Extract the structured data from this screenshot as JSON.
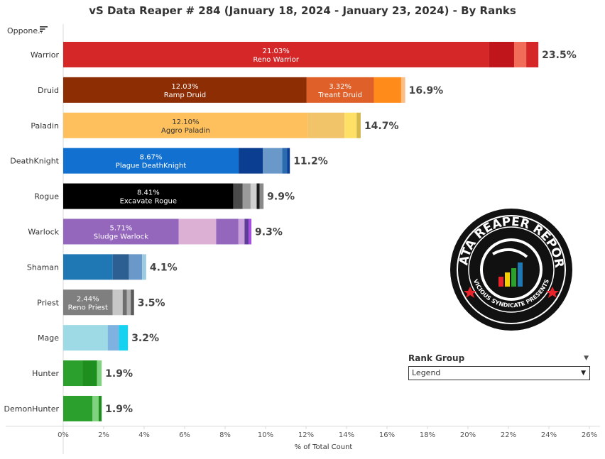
{
  "title": "vS Data Reaper #  284 (January 18, 2024 - January 23, 2024) - By Ranks",
  "filter_label": "Oppone..",
  "rank_group": {
    "title": "Rank Group",
    "selected": "Legend"
  },
  "watermark": {
    "text": "DATA REAPER REPORT",
    "subtext": "VICIOUS SYNDICATE PRESENTS"
  },
  "chart_data": {
    "type": "bar",
    "orientation": "horizontal",
    "stacked": true,
    "xlabel": "% of Total Count",
    "ylabel": "",
    "xlim": [
      0,
      26
    ],
    "xticks": [
      "0%",
      "2%",
      "4%",
      "6%",
      "8%",
      "10%",
      "12%",
      "14%",
      "16%",
      "18%",
      "20%",
      "22%",
      "24%",
      "26%"
    ],
    "grid": false,
    "rows": [
      {
        "class": "Warrior",
        "total_label": "23.5%",
        "segments": [
          {
            "value": 21.03,
            "color": "#d62728",
            "label_pct": "21.03%",
            "label_name": "Reno Warrior"
          },
          {
            "value": 1.25,
            "color": "#c0161b"
          },
          {
            "value": 0.6,
            "color": "#f26c5a"
          },
          {
            "value": 0.6,
            "color": "#d62728"
          }
        ]
      },
      {
        "class": "Druid",
        "total_label": "16.9%",
        "segments": [
          {
            "value": 12.03,
            "color": "#8c2d04",
            "label_pct": "12.03%",
            "label_name": "Ramp Druid"
          },
          {
            "value": 3.32,
            "color": "#e0602a",
            "label_pct": "3.32%",
            "label_name": "Treant Druid"
          },
          {
            "value": 1.35,
            "color": "#ff8c1a"
          },
          {
            "value": 0.2,
            "color": "#fdbe85"
          }
        ]
      },
      {
        "class": "Paladin",
        "total_label": "14.7%",
        "segments": [
          {
            "value": 12.1,
            "color": "#fec05c",
            "label_pct": "12.10%",
            "label_name": "Aggro Paladin"
          },
          {
            "value": 1.8,
            "color": "#f2c46a"
          },
          {
            "value": 0.6,
            "color": "#ffe066"
          },
          {
            "value": 0.2,
            "color": "#d4b94a"
          }
        ]
      },
      {
        "class": "DeathKnight",
        "total_label": "11.2%",
        "segments": [
          {
            "value": 8.67,
            "color": "#1170d0",
            "label_pct": "8.67%",
            "label_name": "Plague DeathKnight"
          },
          {
            "value": 1.2,
            "color": "#0b3d91"
          },
          {
            "value": 0.95,
            "color": "#6a99c9"
          },
          {
            "value": 0.25,
            "color": "#2b6cb0"
          },
          {
            "value": 0.13,
            "color": "#0b3d91"
          }
        ]
      },
      {
        "class": "Rogue",
        "total_label": "9.9%",
        "segments": [
          {
            "value": 8.41,
            "color": "#000000",
            "label_pct": "8.41%",
            "label_name": "Excavate Rogue"
          },
          {
            "value": 0.45,
            "color": "#4a4a4a"
          },
          {
            "value": 0.4,
            "color": "#9a9a9a"
          },
          {
            "value": 0.3,
            "color": "#d0d0d0"
          },
          {
            "value": 0.15,
            "color": "#1a1a1a"
          },
          {
            "value": 0.19,
            "color": "#8a8a8a"
          }
        ]
      },
      {
        "class": "Warlock",
        "total_label": "9.3%",
        "segments": [
          {
            "value": 5.71,
            "color": "#9467bd",
            "label_pct": "5.71%",
            "label_name": "Sludge Warlock"
          },
          {
            "value": 1.85,
            "color": "#dcb0d4"
          },
          {
            "value": 1.1,
            "color": "#9467bd"
          },
          {
            "value": 0.3,
            "color": "#c8a2d8"
          },
          {
            "value": 0.2,
            "color": "#5e3c99"
          },
          {
            "value": 0.14,
            "color": "#a64ee0"
          }
        ]
      },
      {
        "class": "Shaman",
        "total_label": "4.1%",
        "segments": [
          {
            "value": 2.45,
            "color": "#1f77b4"
          },
          {
            "value": 0.8,
            "color": "#2d5f93"
          },
          {
            "value": 0.65,
            "color": "#6a99c9"
          },
          {
            "value": 0.2,
            "color": "#9ecae1"
          }
        ]
      },
      {
        "class": "Priest",
        "total_label": "3.5%",
        "segments": [
          {
            "value": 2.44,
            "color": "#7f7f7f",
            "label_pct": "2.44%",
            "label_name": "Reno Priest"
          },
          {
            "value": 0.5,
            "color": "#c7c7c7"
          },
          {
            "value": 0.2,
            "color": "#6e6e6e"
          },
          {
            "value": 0.2,
            "color": "#b0b0b0"
          },
          {
            "value": 0.16,
            "color": "#5a5a5a"
          }
        ]
      },
      {
        "class": "Mage",
        "total_label": "3.2%",
        "segments": [
          {
            "value": 2.2,
            "color": "#9edae5"
          },
          {
            "value": 0.55,
            "color": "#7fb2e0"
          },
          {
            "value": 0.45,
            "color": "#17d1f0"
          }
        ]
      },
      {
        "class": "Hunter",
        "total_label": "1.9%",
        "segments": [
          {
            "value": 0.95,
            "color": "#2ca02c"
          },
          {
            "value": 0.72,
            "color": "#1e8f1e"
          },
          {
            "value": 0.23,
            "color": "#7fd37f"
          }
        ]
      },
      {
        "class": "DemonHunter",
        "total_label": "1.9%",
        "segments": [
          {
            "value": 1.45,
            "color": "#2ca02c"
          },
          {
            "value": 0.3,
            "color": "#7fd37f"
          },
          {
            "value": 0.15,
            "color": "#1e8f1e"
          }
        ]
      }
    ]
  }
}
